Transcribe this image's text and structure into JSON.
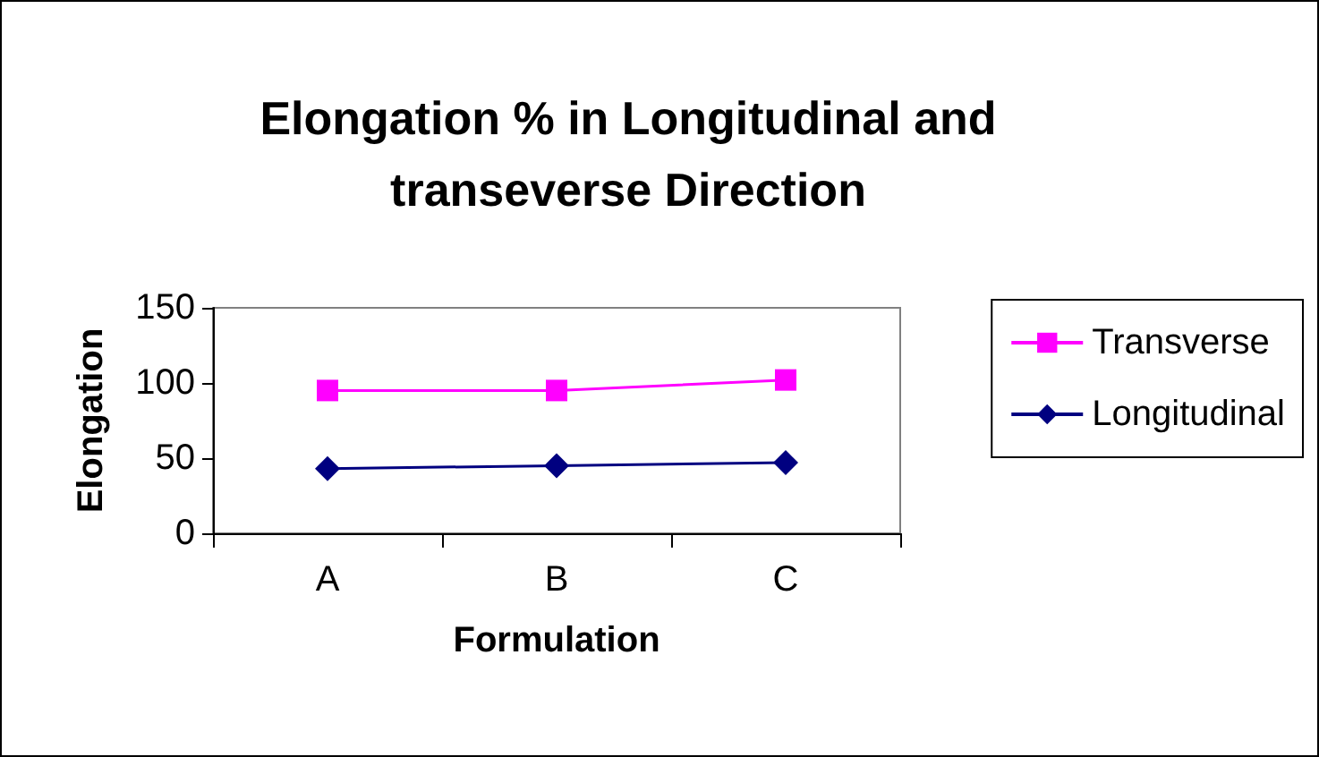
{
  "chart_data": {
    "type": "line",
    "title": "Elongation % in Longitudinal and\ntranseverse Direction",
    "xlabel": "Formulation",
    "ylabel": "Elongation",
    "categories": [
      "A",
      "B",
      "C"
    ],
    "series": [
      {
        "name": "Transverse",
        "color": "#ff00ff",
        "marker": "square",
        "values": [
          95,
          95,
          102
        ]
      },
      {
        "name": "Longitudinal",
        "color": "#000080",
        "marker": "diamond",
        "values": [
          43,
          45,
          47
        ]
      }
    ],
    "ylim": [
      0,
      150
    ],
    "yticks": [
      0,
      50,
      100,
      150
    ],
    "grid": false,
    "legend": "right",
    "line_style": "solid"
  }
}
